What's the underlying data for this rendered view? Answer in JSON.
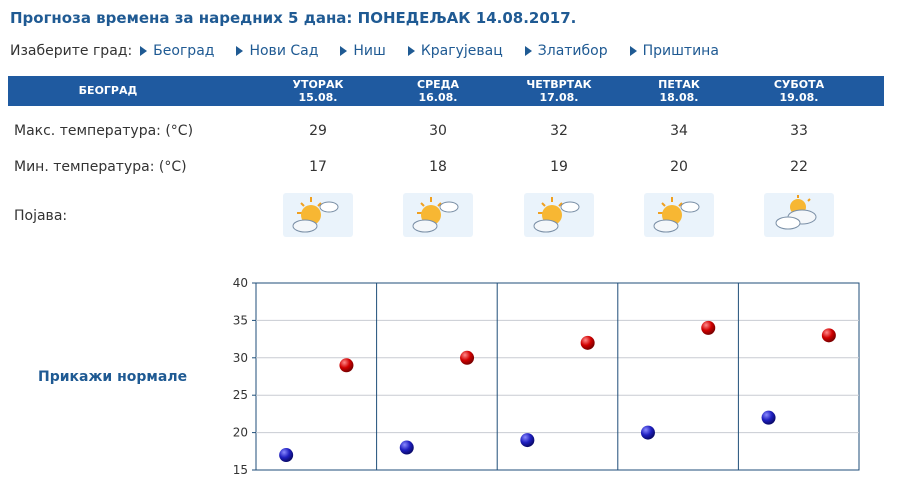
{
  "header": {
    "title": "Прогноза времена за наредних 5 дана: ПОНЕДЕЉАК  14.08.2017."
  },
  "city_select": {
    "label": "Изаберите град:",
    "cities": [
      "Београд",
      "Нови Сад",
      "Ниш",
      "Крагујевац",
      "Златибор",
      "Приштина"
    ]
  },
  "table": {
    "city": "БЕОГРАД",
    "days": [
      {
        "name": "УТОРАК",
        "date": "15.08.",
        "max": "29",
        "min": "17",
        "icon": "sun-cloud-icon"
      },
      {
        "name": "СРЕДА",
        "date": "16.08.",
        "max": "30",
        "min": "18",
        "icon": "sun-cloud-icon"
      },
      {
        "name": "ЧЕТВРТАК",
        "date": "17.08.",
        "max": "32",
        "min": "19",
        "icon": "sun-cloud-icon"
      },
      {
        "name": "ПЕТАК",
        "date": "18.08.",
        "max": "34",
        "min": "20",
        "icon": "sun-cloud-icon"
      },
      {
        "name": "СУБОТА",
        "date": "19.08.",
        "max": "33",
        "min": "22",
        "icon": "cloud-sun-icon"
      }
    ],
    "row_labels": {
      "max": "Макс. температура: (°C)",
      "min": "Мин. температура: (°C)",
      "phenomenon": "Појава:"
    }
  },
  "normals_link": "Прикажи нормале",
  "chart_data": {
    "type": "scatter",
    "categories": [
      "15.08.",
      "16.08.",
      "17.08.",
      "18.08.",
      "19.08."
    ],
    "series": [
      {
        "values": [
          29,
          30,
          32,
          34,
          33
        ],
        "color": "#cc0000"
      },
      {
        "values": [
          17,
          18,
          19,
          20,
          22
        ],
        "color": "#1a1aa8"
      }
    ],
    "ylim": [
      15,
      40
    ],
    "yticks": [
      15,
      20,
      25,
      30,
      35,
      40
    ],
    "grid": true
  }
}
